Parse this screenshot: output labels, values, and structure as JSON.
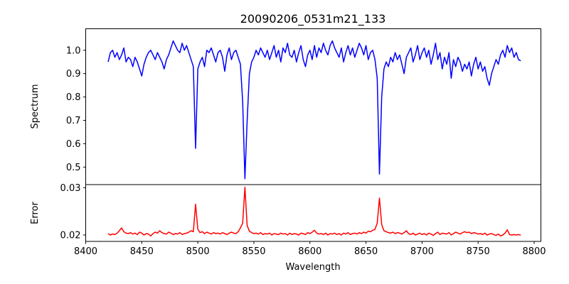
{
  "chart_data": [
    {
      "type": "line",
      "title": "20090206_0531m21_133",
      "xlabel": "",
      "ylabel": "Spectrum",
      "xlim": [
        8400,
        8806
      ],
      "ylim": [
        0.425,
        1.092
      ],
      "yticks": [
        "0.5",
        "0.6",
        "0.7",
        "0.8",
        "0.9",
        "1.0"
      ],
      "ytick_values": [
        0.5,
        0.6,
        0.7,
        0.8,
        0.9,
        1.0
      ],
      "grid": false,
      "series": [
        {
          "name": "Spectrum",
          "color": "#0000ff",
          "x_start": 8420,
          "x_step": 2,
          "values": [
            0.95,
            0.99,
            1.0,
            0.97,
            0.99,
            0.96,
            0.98,
            1.01,
            0.95,
            0.97,
            0.96,
            0.93,
            0.97,
            0.95,
            0.92,
            0.89,
            0.94,
            0.97,
            0.99,
            1.0,
            0.98,
            0.96,
            0.99,
            0.97,
            0.95,
            0.92,
            0.96,
            0.98,
            1.01,
            1.04,
            1.02,
            1.0,
            0.99,
            1.03,
            1.0,
            1.02,
            0.99,
            0.96,
            0.93,
            0.58,
            0.92,
            0.95,
            0.97,
            0.93,
            1.0,
            0.99,
            1.01,
            0.98,
            0.95,
            0.99,
            1.0,
            0.97,
            0.91,
            0.98,
            1.01,
            0.96,
            0.99,
            1.0,
            0.97,
            0.94,
            0.78,
            0.45,
            0.7,
            0.9,
            0.95,
            0.97,
            1.0,
            0.98,
            1.01,
            0.99,
            0.97,
            1.0,
            0.96,
            0.99,
            1.02,
            0.97,
            1.0,
            0.95,
            1.01,
            0.99,
            1.03,
            0.98,
            0.97,
            1.0,
            0.95,
            0.99,
            1.02,
            0.96,
            0.93,
            0.98,
            1.0,
            0.96,
            1.02,
            0.97,
            1.01,
            0.99,
            1.03,
            1.0,
            0.98,
            1.02,
            1.04,
            1.01,
            0.99,
            0.97,
            1.01,
            0.95,
            0.99,
            1.02,
            0.98,
            1.01,
            0.97,
            1.0,
            1.03,
            1.01,
            0.98,
            1.02,
            0.96,
            0.99,
            1.0,
            0.96,
            0.88,
            0.47,
            0.8,
            0.92,
            0.95,
            0.93,
            0.97,
            0.95,
            0.99,
            0.96,
            0.98,
            0.94,
            0.9,
            0.97,
            0.99,
            1.01,
            0.95,
            0.98,
            1.02,
            0.96,
            0.99,
            1.01,
            0.97,
            1.0,
            0.94,
            0.98,
            1.03,
            0.96,
            0.99,
            0.92,
            0.97,
            0.94,
            0.99,
            0.88,
            0.96,
            0.93,
            0.97,
            0.95,
            0.91,
            0.94,
            0.92,
            0.95,
            0.89,
            0.94,
            0.97,
            0.92,
            0.95,
            0.91,
            0.93,
            0.88,
            0.85,
            0.9,
            0.93,
            0.96,
            0.94,
            0.98,
            1.0,
            0.97,
            1.02,
            0.99,
            1.01,
            0.97,
            0.99,
            0.96,
            0.955
          ]
        }
      ]
    },
    {
      "type": "line",
      "xlabel": "Wavelength",
      "ylabel": "Error",
      "xlim": [
        8400,
        8806
      ],
      "ylim": [
        0.01865,
        0.03065
      ],
      "xticks": [
        "8400",
        "8450",
        "8500",
        "8550",
        "8600",
        "8650",
        "8700",
        "8750",
        "8800"
      ],
      "xtick_values": [
        8400,
        8450,
        8500,
        8550,
        8600,
        8650,
        8700,
        8750,
        8800
      ],
      "yticks": [
        "0.02",
        "0.03"
      ],
      "ytick_values": [
        0.02,
        0.03
      ],
      "grid": false,
      "series": [
        {
          "name": "Error",
          "color": "#ff0000",
          "x_start": 8420,
          "x_step": 2,
          "values": [
            0.0203,
            0.02,
            0.0202,
            0.0201,
            0.0204,
            0.0209,
            0.0215,
            0.0207,
            0.0204,
            0.0203,
            0.0205,
            0.0202,
            0.0204,
            0.0201,
            0.0206,
            0.0204,
            0.02,
            0.0203,
            0.0202,
            0.0198,
            0.0203,
            0.0206,
            0.0204,
            0.0209,
            0.0205,
            0.0203,
            0.0202,
            0.0206,
            0.0204,
            0.0201,
            0.0203,
            0.0202,
            0.0205,
            0.0201,
            0.0203,
            0.0204,
            0.0206,
            0.0209,
            0.0207,
            0.0265,
            0.0212,
            0.0205,
            0.0207,
            0.0203,
            0.0206,
            0.0204,
            0.0202,
            0.0205,
            0.0203,
            0.0204,
            0.0202,
            0.0205,
            0.0203,
            0.0201,
            0.0204,
            0.0206,
            0.0204,
            0.0203,
            0.0207,
            0.0215,
            0.0225,
            0.0301,
            0.022,
            0.0208,
            0.0205,
            0.0203,
            0.0204,
            0.0202,
            0.0205,
            0.0201,
            0.0203,
            0.0202,
            0.0204,
            0.02,
            0.0203,
            0.0202,
            0.0201,
            0.0204,
            0.0202,
            0.0203,
            0.02,
            0.0204,
            0.0201,
            0.0203,
            0.0202,
            0.02,
            0.0204,
            0.0203,
            0.0201,
            0.0205,
            0.0203,
            0.0206,
            0.021,
            0.0204,
            0.0202,
            0.0203,
            0.0201,
            0.0204,
            0.02,
            0.0203,
            0.0202,
            0.0204,
            0.0201,
            0.0203,
            0.02,
            0.0204,
            0.0202,
            0.0205,
            0.0201,
            0.0203,
            0.0204,
            0.0202,
            0.0205,
            0.0203,
            0.0206,
            0.0204,
            0.0208,
            0.0207,
            0.021,
            0.0212,
            0.0225,
            0.0278,
            0.0222,
            0.0209,
            0.0207,
            0.0205,
            0.0204,
            0.0206,
            0.0203,
            0.0205,
            0.0204,
            0.0202,
            0.0205,
            0.0209,
            0.0203,
            0.0201,
            0.0204,
            0.02,
            0.0202,
            0.0204,
            0.0201,
            0.0203,
            0.02,
            0.0204,
            0.0202,
            0.0199,
            0.0203,
            0.0206,
            0.0201,
            0.0204,
            0.0203,
            0.0202,
            0.0205,
            0.02,
            0.0203,
            0.0206,
            0.0204,
            0.0202,
            0.0205,
            0.0207,
            0.0205,
            0.0206,
            0.0203,
            0.0205,
            0.0204,
            0.0202,
            0.0203,
            0.0201,
            0.0204,
            0.02,
            0.0202,
            0.0203,
            0.0201,
            0.0199,
            0.0202,
            0.0198,
            0.02,
            0.0204,
            0.0211,
            0.0201,
            0.02,
            0.0201,
            0.02,
            0.0201,
            0.02
          ]
        }
      ]
    }
  ]
}
